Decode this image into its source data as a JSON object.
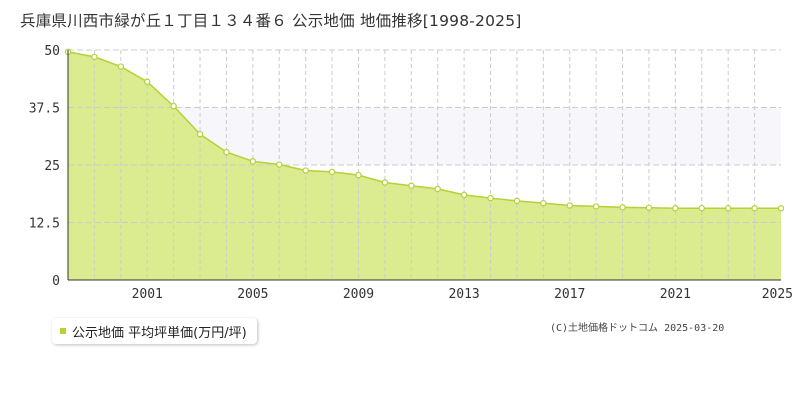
{
  "chart_data": {
    "type": "area",
    "title": "兵庫県川西市緑が丘１丁目１３４番６ 公示地価 地価推移[1998-2025]",
    "x": [
      1998,
      1999,
      2000,
      2001,
      2002,
      2003,
      2004,
      2005,
      2006,
      2007,
      2008,
      2009,
      2010,
      2011,
      2012,
      2013,
      2014,
      2015,
      2016,
      2017,
      2018,
      2019,
      2020,
      2021,
      2022,
      2023,
      2024,
      2025
    ],
    "series": [
      {
        "name": "公示地価 平均坪単価(万円/坪)",
        "values": [
          49.6,
          48.5,
          46.4,
          43.1,
          37.8,
          31.7,
          27.8,
          25.8,
          25.1,
          23.8,
          23.5,
          22.8,
          21.2,
          20.5,
          19.8,
          18.5,
          17.8,
          17.2,
          16.7,
          16.2,
          16.0,
          15.8,
          15.7,
          15.6,
          15.6,
          15.6,
          15.6,
          15.6
        ]
      }
    ],
    "x_ticks": [
      "2001",
      "2005",
      "2009",
      "2013",
      "2017",
      "2021",
      "2025"
    ],
    "y_ticks": [
      "0",
      "12.5",
      "25",
      "37.5",
      "50"
    ],
    "ylim": [
      0,
      50
    ],
    "xlim": [
      1998,
      2025
    ],
    "grid": true,
    "legend_position": "bottom-left",
    "colors": {
      "fill": "#dbeb8f",
      "line": "#b2d235",
      "band": "#f7f6fa",
      "grid": "#cccccc"
    }
  },
  "legend": {
    "label": "公示地価 平均坪単価(万円/坪)"
  },
  "footer": {
    "copyright": "(C)土地価格ドットコム 2025-03-20"
  }
}
